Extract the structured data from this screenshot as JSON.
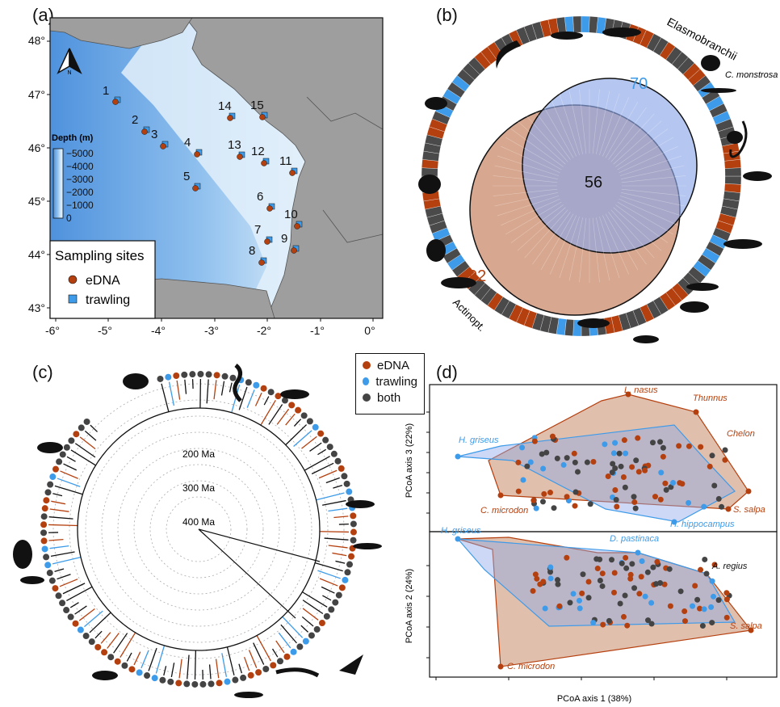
{
  "colors": {
    "edna": "#b5400f",
    "trawling": "#3d9be9",
    "both": "#444444",
    "sea_deep": "#5aa0e6",
    "sea_shallow": "#ddeefa",
    "land": "#9e9e9e",
    "venn_edna": "#c98a6a",
    "venn_trawl": "#8ea8e8"
  },
  "panel_a": {
    "label": "(a)",
    "lat_ticks": [
      "48°",
      "47°",
      "46°",
      "45°",
      "44°",
      "43°"
    ],
    "lon_ticks": [
      "-6°",
      "-5°",
      "-4°",
      "-3°",
      "-2°",
      "-1°",
      "0°"
    ],
    "north": "N",
    "depth_title": "Depth (m)",
    "depth_ticks": [
      "−5000",
      "−4000",
      "−3000",
      "−2000",
      "−1000",
      "0"
    ],
    "legend_title": "Sampling sites",
    "legend_items": [
      "eDNA",
      "trawling"
    ],
    "sites": [
      "1",
      "2",
      "3",
      "4",
      "5",
      "6",
      "7",
      "8",
      "9",
      "10",
      "11",
      "12",
      "13",
      "14",
      "15"
    ]
  },
  "panel_b": {
    "label": "(b)",
    "clade_top": "Elasmobranchii",
    "clade_bottom": "Actinopt.",
    "species_note": "C. monstrosa",
    "venn_trawl_only": "70",
    "venn_shared": "56",
    "venn_edna_only": "92"
  },
  "panel_c": {
    "label": "(c)",
    "ages": [
      "200 Ma",
      "300 Ma",
      "400 Ma"
    ],
    "legend_items": [
      "eDNA",
      "trawling",
      "both"
    ]
  },
  "panel_d": {
    "label": "(d)",
    "top_ylabel": "PCoA axis 3 (22%)",
    "bottom_ylabel": "PCoA axis 2 (24%)",
    "xlabel": "PCoA axis 1 (38%)",
    "top_labels": {
      "l_nasus": "L. nasus",
      "thunnus": "Thunnus",
      "chelon": "Chelon",
      "h_griseus": "H. griseus",
      "c_microdon": "C. microdon",
      "s_salpa": "S. salpa",
      "h_hippocampus": "H. hippocampus"
    },
    "bottom_labels": {
      "h_griseus": "H. griseus",
      "d_pastinaca": "D. pastinaca",
      "a_regius": "A. regius",
      "s_salpa": "S. salpa",
      "c_microdon": "C. microdon"
    }
  }
}
